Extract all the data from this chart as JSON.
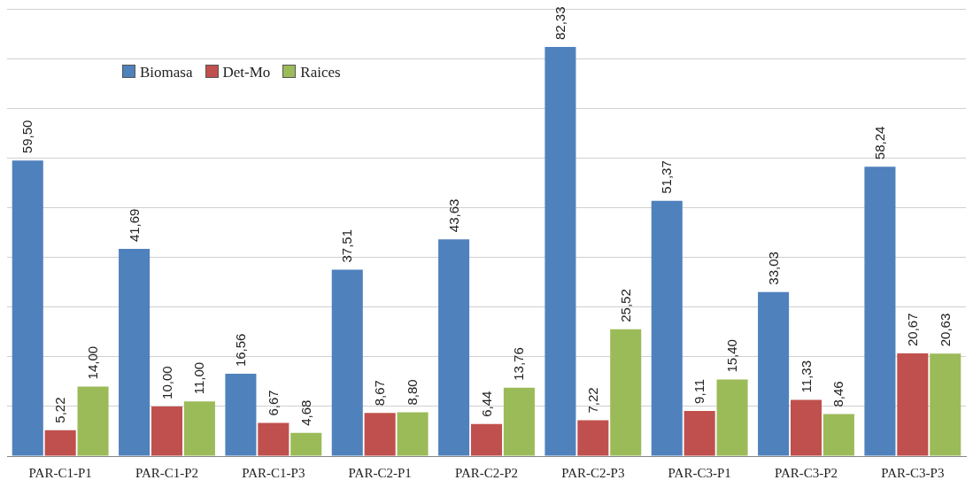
{
  "chart_data": {
    "type": "bar",
    "categories": [
      "PAR-C1-P1",
      "PAR-C1-P2",
      "PAR-C1-P3",
      "PAR-C2-P1",
      "PAR-C2-P2",
      "PAR-C2-P3",
      "PAR-C3-P1",
      "PAR-C3-P2",
      "PAR-C3-P3"
    ],
    "series": [
      {
        "name": "Biomasa",
        "color": "#4f81bd",
        "values": [
          59.5,
          41.69,
          16.56,
          37.51,
          43.63,
          82.33,
          51.37,
          33.03,
          58.24
        ],
        "value_labels": [
          "59,50",
          "41,69",
          "16,56",
          "37,51",
          "43,63",
          "82,33",
          "51,37",
          "33,03",
          "58,24"
        ]
      },
      {
        "name": "Det-Mo",
        "color": "#c0504d",
        "values": [
          5.22,
          10.0,
          6.67,
          8.67,
          6.44,
          7.22,
          9.11,
          11.33,
          20.67
        ],
        "value_labels": [
          "5,22",
          "10,00",
          "6,67",
          "8,67",
          "6,44",
          "7,22",
          "9,11",
          "11,33",
          "20,67"
        ]
      },
      {
        "name": "Raices",
        "color": "#9bbb59",
        "values": [
          14.0,
          11.0,
          4.68,
          8.8,
          13.76,
          25.52,
          15.4,
          8.46,
          20.63
        ],
        "value_labels": [
          "14,00",
          "11,00",
          "4,68",
          "8,80",
          "13,76",
          "25,52",
          "15,40",
          "8,46",
          "20,63"
        ]
      }
    ],
    "ylim": [
      0,
      90
    ],
    "yticks": [
      {
        "value": 0,
        "label": null
      },
      {
        "value": 10,
        "label": null
      },
      {
        "value": 20,
        "label": null
      },
      {
        "value": 30,
        "label": null
      },
      {
        "value": 40,
        "label": null
      },
      {
        "value": 50,
        "label": null
      },
      {
        "value": 60,
        "label": null
      },
      {
        "value": 70,
        "label": null
      },
      {
        "value": 80,
        "label": null
      },
      {
        "value": 90,
        "label": null
      }
    ],
    "tick_labels": "x",
    "grid": "y",
    "legend": "top left"
  }
}
